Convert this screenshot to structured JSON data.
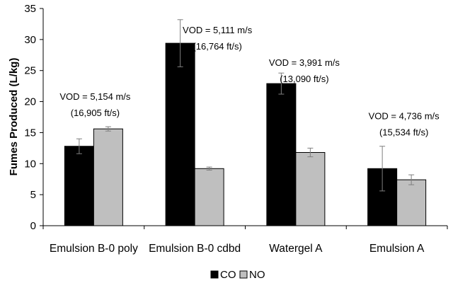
{
  "chart_data": {
    "type": "bar",
    "title": "",
    "xlabel": "",
    "ylabel": "Fumes Produced (L/kg)",
    "ylim": [
      0,
      35
    ],
    "yticks": [
      "0",
      "5",
      "10",
      "15",
      "20",
      "25",
      "30",
      "35"
    ],
    "grid": false,
    "legend_position": "bottom",
    "categories": [
      "Emulsion B-0 poly",
      "Emulsion B-0 cdbd",
      "Watergel A",
      "Emulsion A"
    ],
    "series": [
      {
        "name": "CO",
        "color": "#000000",
        "values": [
          12.8,
          29.4,
          22.9,
          9.2
        ],
        "error": [
          1.2,
          3.8,
          1.7,
          3.6
        ]
      },
      {
        "name": "NO",
        "color": "#bfbfbf",
        "values": [
          15.6,
          9.2,
          11.8,
          7.4
        ],
        "error": [
          0.35,
          0.25,
          0.7,
          0.8
        ]
      }
    ],
    "annotations": [
      {
        "category": "Emulsion B-0 poly",
        "line1": "VOD = 5,154 m/s",
        "line2": "(16,905 ft/s)"
      },
      {
        "category": "Emulsion B-0 cdbd",
        "line1": "VOD = 5,111 m/s",
        "line2": "(16,764 ft/s)"
      },
      {
        "category": "Watergel A",
        "line1": "VOD = 3,991 m/s",
        "line2": "(13,090 ft/s)"
      },
      {
        "category": "Emulsion A",
        "line1": "VOD = 4,736 m/s",
        "line2": "(15,534 ft/s)"
      }
    ]
  }
}
